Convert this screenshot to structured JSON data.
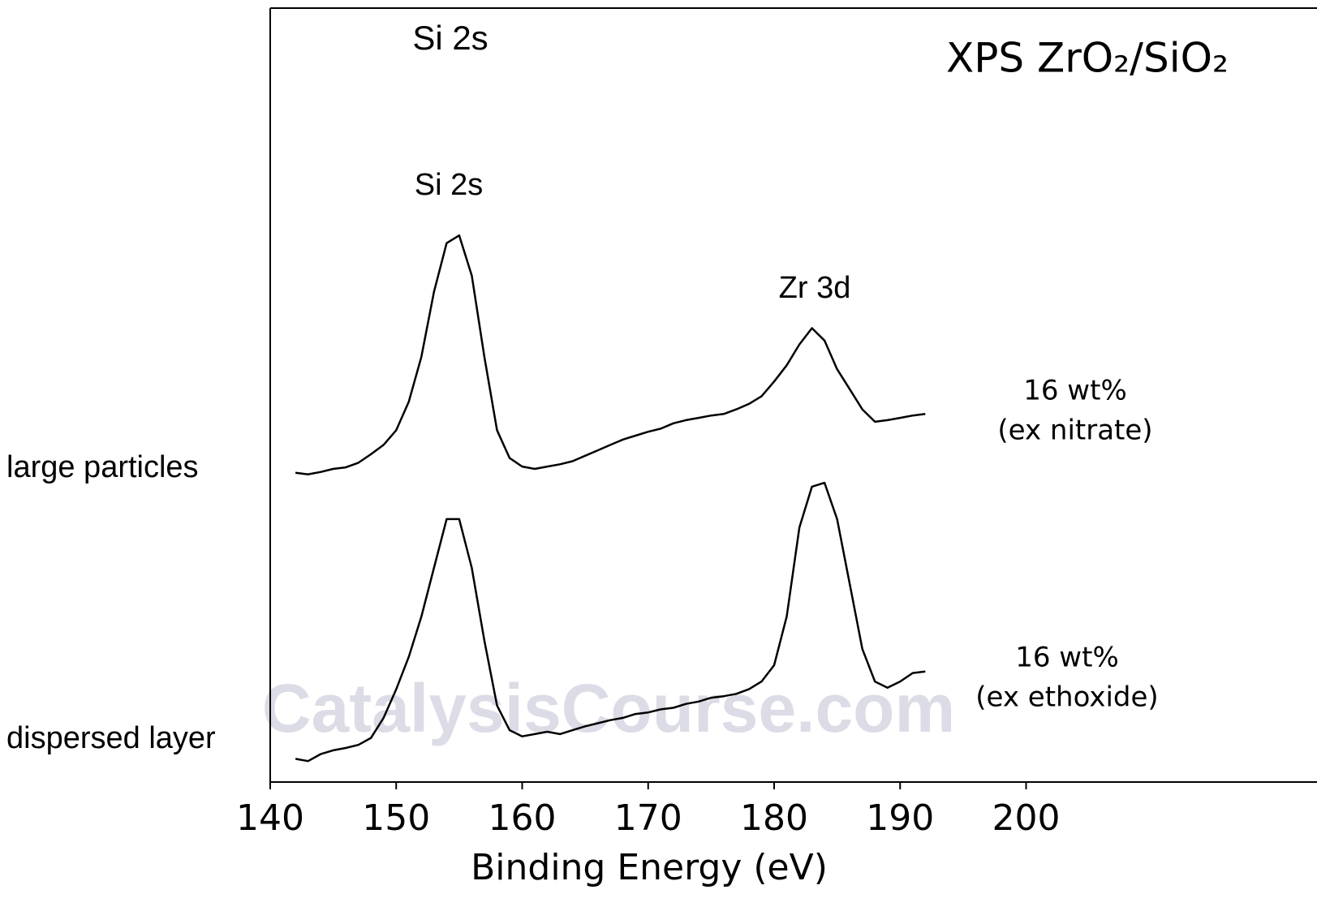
{
  "chart_data": {
    "type": "line",
    "title": "XPS ZrO₂/SiO₂",
    "xlabel": "Binding Energy (eV)",
    "xlim": [
      140,
      220
    ],
    "xticks": [
      140,
      150,
      160,
      170,
      180,
      190,
      200
    ],
    "ylim": [
      0,
      100
    ],
    "x": [
      142,
      143,
      144,
      145,
      146,
      147,
      148,
      149,
      150,
      151,
      152,
      153,
      154,
      155,
      156,
      157,
      158,
      159,
      160,
      161,
      162,
      163,
      164,
      165,
      166,
      167,
      168,
      169,
      170,
      171,
      172,
      173,
      174,
      175,
      176,
      177,
      178,
      179,
      180,
      181,
      182,
      183,
      184,
      185,
      186,
      187,
      188,
      189,
      190,
      191,
      192
    ],
    "series": [
      {
        "color": "#000000",
        "side_label": "large particles",
        "label_lines": [
          "16 wt%",
          "(ex nitrate)"
        ],
        "values": [
          39.9,
          39.7,
          40.0,
          40.4,
          40.6,
          41.2,
          42.3,
          43.5,
          45.4,
          49.1,
          54.9,
          63.3,
          69.6,
          70.6,
          65.4,
          54.9,
          45.4,
          41.8,
          40.7,
          40.4,
          40.7,
          41.0,
          41.4,
          42.1,
          42.8,
          43.5,
          44.2,
          44.7,
          45.2,
          45.6,
          46.3,
          46.7,
          47.0,
          47.3,
          47.5,
          48.1,
          48.8,
          49.8,
          51.7,
          53.8,
          56.5,
          58.6,
          57.0,
          53.3,
          50.7,
          48.1,
          46.5,
          46.7,
          47.0,
          47.3,
          47.5
        ]
      },
      {
        "color": "#000000",
        "side_label": "dispersed layer",
        "label_lines": [
          "16 wt%",
          "(ex ethoxide)"
        ],
        "values": [
          2.9,
          2.6,
          3.5,
          4.0,
          4.3,
          4.7,
          5.6,
          8.2,
          11.9,
          16.1,
          21.3,
          27.6,
          33.9,
          33.9,
          27.6,
          18.2,
          9.8,
          6.6,
          5.8,
          6.1,
          6.4,
          6.1,
          6.6,
          7.1,
          7.5,
          7.9,
          8.2,
          8.7,
          8.9,
          9.3,
          9.5,
          10.0,
          10.3,
          10.8,
          11.0,
          11.3,
          11.9,
          12.9,
          15.0,
          21.3,
          32.8,
          38.1,
          38.6,
          33.9,
          25.5,
          17.1,
          12.9,
          12.1,
          12.9,
          14.0,
          14.2
        ]
      }
    ],
    "annotations": [
      "Si 2s",
      "Si 2s",
      "Zr 3d"
    ],
    "watermark": "CatalysisCourse.com"
  }
}
